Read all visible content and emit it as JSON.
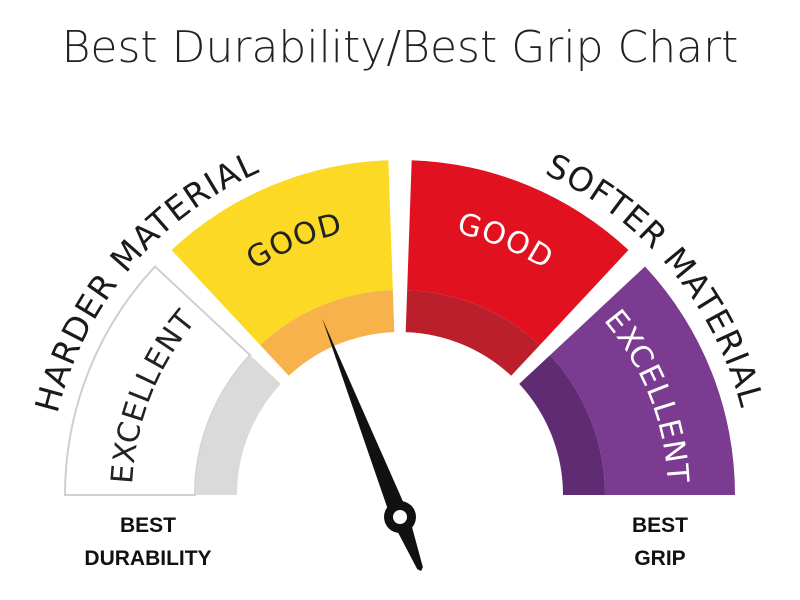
{
  "title": "Best Durability/Best Grip Chart",
  "gauge": {
    "left_label": "HARDER MATERIAL",
    "right_label": "SOFTER MATERIAL",
    "segments": [
      {
        "label": "EXCELLENT"
      },
      {
        "label": "GOOD"
      },
      {
        "label": "GOOD"
      },
      {
        "label": "EXCELLENT"
      }
    ]
  },
  "footer": {
    "left": [
      "BEST",
      "DURABILITY"
    ],
    "right": [
      "BEST",
      "GRIP"
    ]
  }
}
